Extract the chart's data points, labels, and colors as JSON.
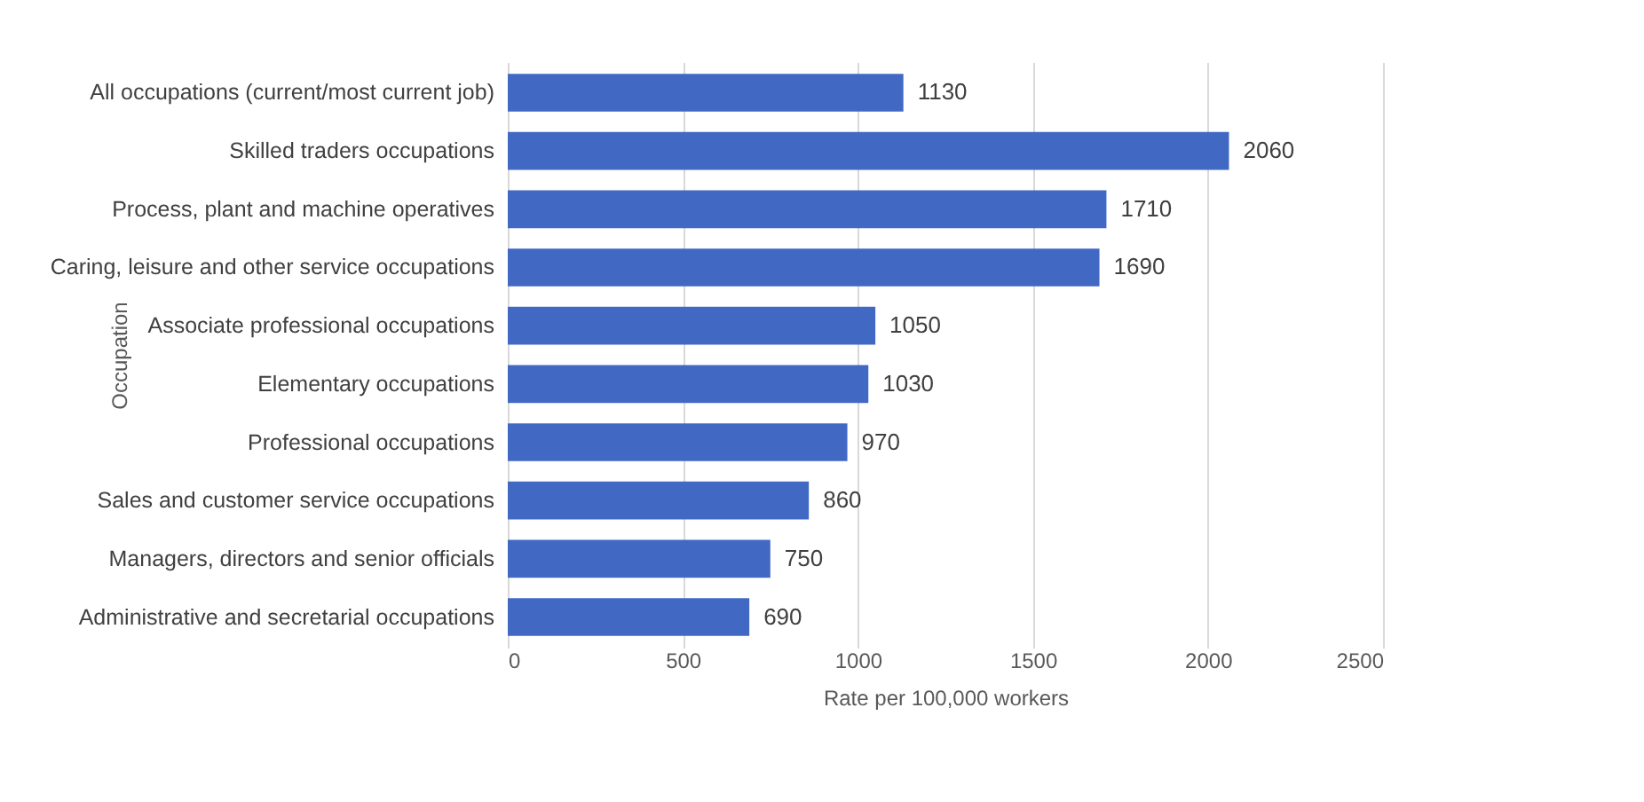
{
  "chart_data": {
    "type": "bar",
    "orientation": "horizontal",
    "xlabel": "Rate per 100,000 workers",
    "ylabel": "Occupation",
    "categories": [
      "All occupations (current/most current job)",
      "Skilled traders occupations",
      "Process, plant and machine operatives",
      "Caring, leisure and other service occupations",
      "Associate professional occupations",
      "Elementary occupations",
      "Professional occupations",
      "Sales and customer service occupations",
      "Managers, directors and senior officials",
      "Administrative and secretarial occupations"
    ],
    "values": [
      1130,
      2060,
      1710,
      1690,
      1050,
      1030,
      970,
      860,
      750,
      690
    ],
    "color": "#4169c4",
    "xlim": [
      0,
      2500
    ],
    "xticks": [
      0,
      500,
      1000,
      1500,
      2000,
      2500
    ],
    "grid": "x",
    "data_labels": true
  }
}
